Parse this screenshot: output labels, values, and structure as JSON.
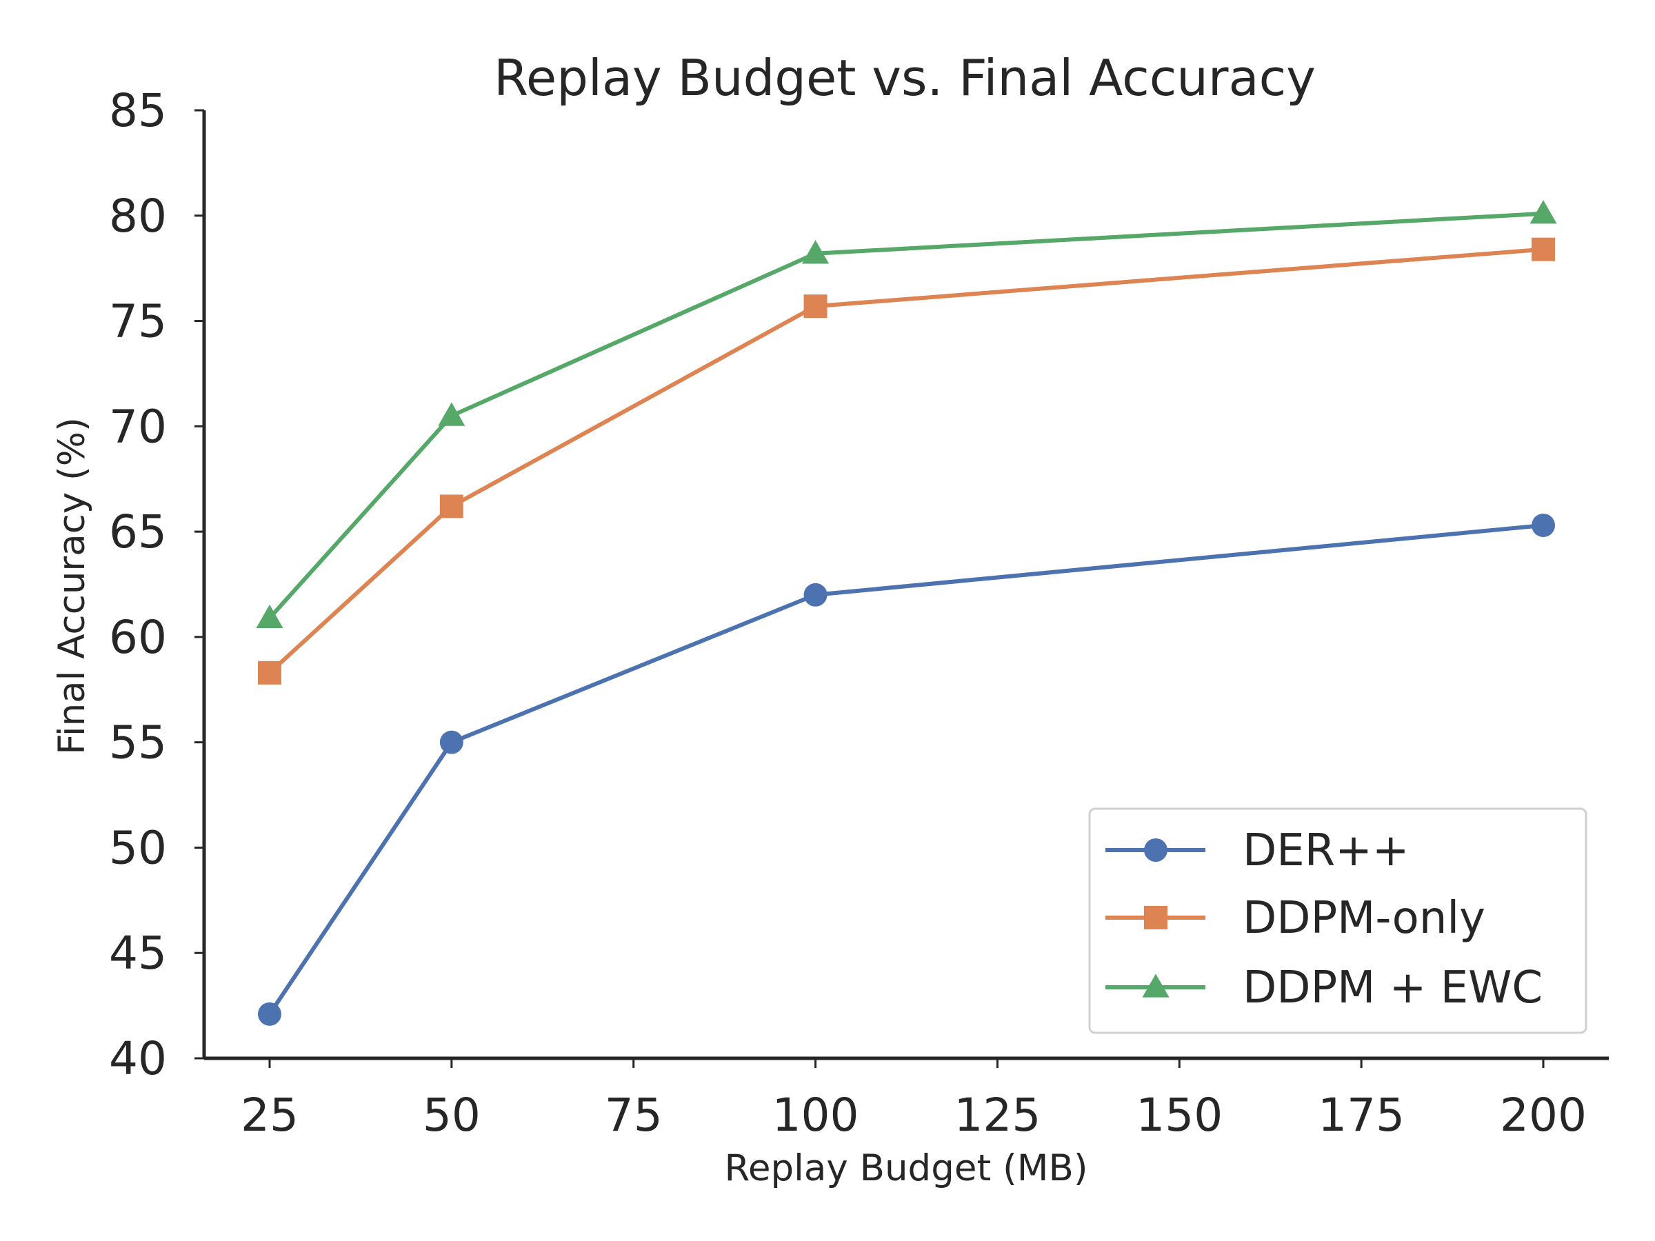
{
  "chart_data": {
    "type": "line",
    "title": "Replay Budget vs. Final Accuracy",
    "xlabel": "Replay Budget (MB)",
    "ylabel": "Final Accuracy (%)",
    "xlim": [
      16,
      209
    ],
    "ylim": [
      40,
      85
    ],
    "xticks": [
      25,
      50,
      75,
      100,
      125,
      150,
      175,
      200
    ],
    "yticks": [
      40,
      45,
      50,
      55,
      60,
      65,
      70,
      75,
      80,
      85
    ],
    "grid": false,
    "legend_position": "lower-right",
    "x": [
      25,
      50,
      100,
      200
    ],
    "series": [
      {
        "name": "DER++",
        "values": [
          42.1,
          55.0,
          62.0,
          65.3
        ],
        "color": "#4c72b0",
        "marker": "circle"
      },
      {
        "name": "DDPM-only",
        "values": [
          58.3,
          66.2,
          75.7,
          78.4
        ],
        "color": "#dd8452",
        "marker": "square"
      },
      {
        "name": "DDPM + EWC",
        "values": [
          60.9,
          70.5,
          78.2,
          80.1
        ],
        "color": "#55a868",
        "marker": "triangle"
      }
    ]
  }
}
